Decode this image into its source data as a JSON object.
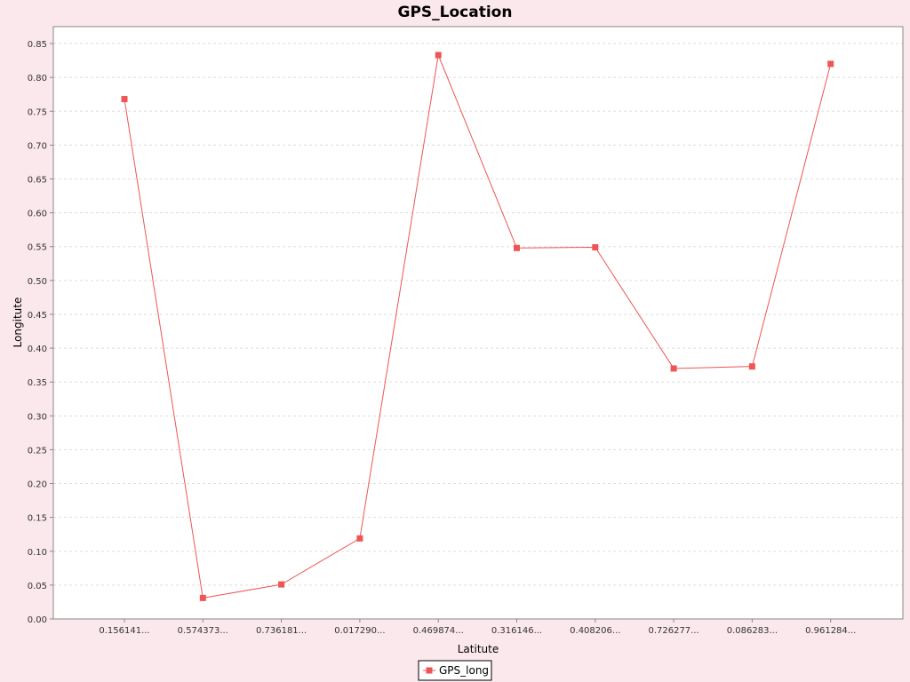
{
  "chart_data": {
    "type": "line",
    "title": "GPS_Location",
    "xlabel": "Latitute",
    "ylabel": "Longitute",
    "categories": [
      "0.156141...",
      "0.574373...",
      "0.736181...",
      "0.017290...",
      "0.469874...",
      "0.316146...",
      "0.408206...",
      "0.726277...",
      "0.086283...",
      "0.961284..."
    ],
    "series": [
      {
        "name": "GPS_long",
        "values": [
          0.768,
          0.031,
          0.051,
          0.119,
          0.833,
          0.548,
          0.549,
          0.37,
          0.373,
          0.82
        ]
      }
    ],
    "ylim": [
      0.0,
      0.875
    ],
    "yticks": [
      "0.00",
      "0.05",
      "0.10",
      "0.15",
      "0.20",
      "0.25",
      "0.30",
      "0.35",
      "0.40",
      "0.45",
      "0.50",
      "0.55",
      "0.60",
      "0.65",
      "0.70",
      "0.75",
      "0.80",
      "0.85"
    ],
    "grid": true,
    "legend": "bottom-center",
    "colors": {
      "background": "#FBE8EC",
      "plot": "#FFFFFF",
      "series": "#EE5555",
      "grid": "#DDDDDD",
      "axis": "#888888"
    }
  }
}
